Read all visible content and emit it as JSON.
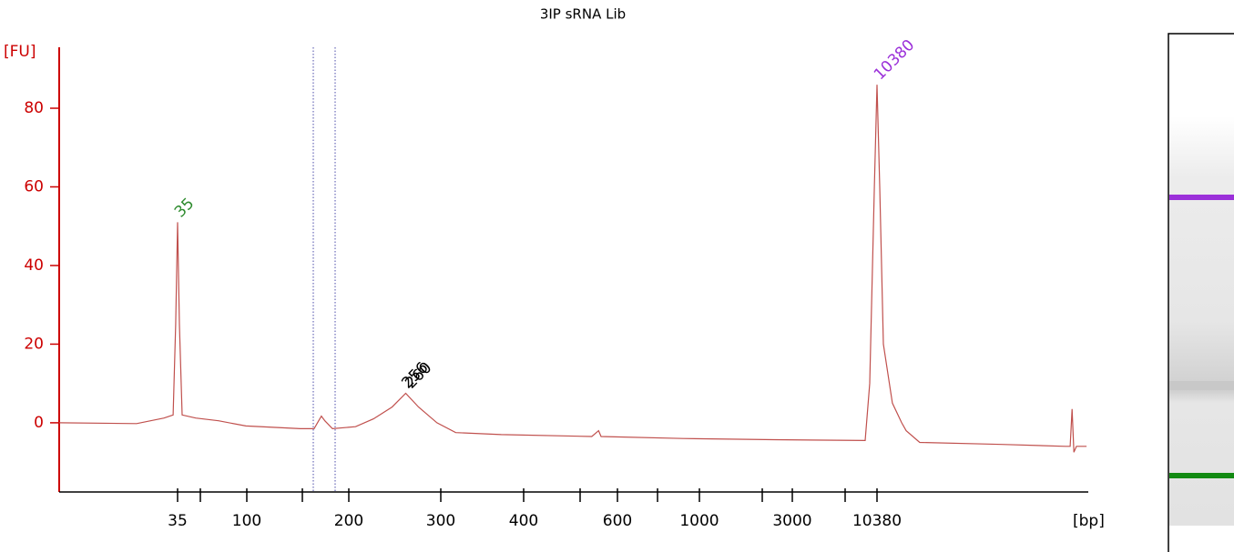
{
  "chart_data": {
    "type": "line",
    "title": "3IP sRNA Lib",
    "ylabel": "[FU]",
    "xlabel": "[bp]",
    "log_x": true,
    "ylim": [
      -17.6,
      95.5
    ],
    "yticks": [
      0,
      20,
      40,
      60,
      80
    ],
    "xticks": [
      35,
      100,
      200,
      300,
      400,
      600,
      1000,
      3000,
      10380
    ],
    "x": [
      5.8,
      18.8,
      28.5,
      32.7,
      34.0,
      35,
      36.0,
      37.5,
      46.1,
      65.2,
      98.6,
      144,
      158,
      163,
      166,
      170,
      179,
      206,
      223,
      242,
      257,
      272,
      295,
      316,
      370,
      537,
      553,
      559,
      903,
      2418,
      8730,
      9330,
      9980,
      10380,
      10800,
      11400,
      13000,
      14900,
      15900,
      19400,
      64600,
      164500,
      176000,
      181000,
      186000,
      193000,
      224000
    ],
    "series": [
      {
        "color": "#c0504d",
        "values": [
          0,
          -0.2,
          1.2,
          2,
          25,
          51,
          25,
          2,
          1.2,
          0.5,
          -0.8,
          -1.5,
          -1.5,
          0.5,
          1.7,
          0.5,
          -1.5,
          -1,
          1,
          4,
          7.5,
          4,
          0,
          -2.5,
          -3,
          -3.5,
          -2,
          -3.5,
          -4,
          -4.3,
          -4.5,
          10,
          60,
          86,
          60,
          20,
          5,
          0,
          -2,
          -5,
          -5.5,
          -6,
          -6,
          3.5,
          -7.5,
          -6,
          -6
        ]
      }
    ],
    "peak_labels": [
      {
        "label": "35",
        "x": 35,
        "y": 51,
        "color": "#2e8b2e"
      },
      {
        "label": "256",
        "x": 256,
        "y": 7.5,
        "color": "#000000"
      },
      {
        "label": "260",
        "x": 260,
        "y": 7.5,
        "color": "#000000"
      },
      {
        "label": "10380",
        "x": 10380,
        "y": 86,
        "color": "#9b30d9"
      }
    ]
  }
}
